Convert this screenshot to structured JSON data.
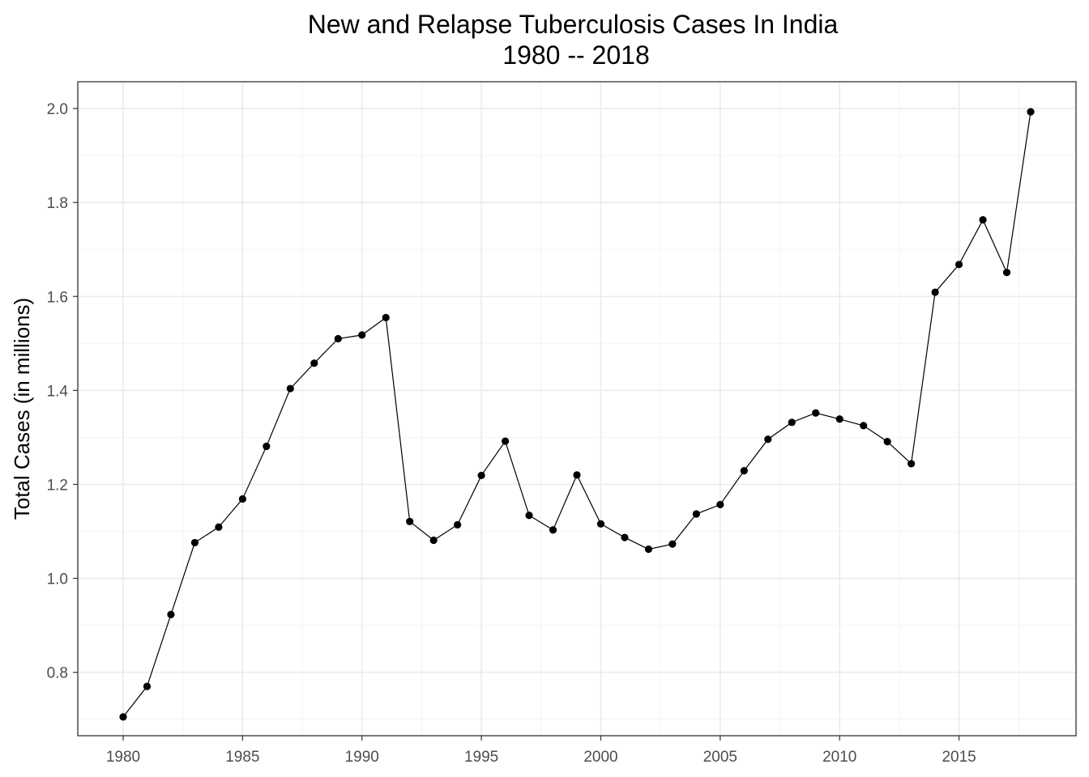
{
  "chart_data": {
    "type": "line",
    "title": "New and Relapse Tuberculosis Cases In India",
    "subtitle": "1980 -- 2018",
    "xlabel": "",
    "ylabel": "Total Cases (in millions)",
    "xlim": [
      1978.1,
      2019.9
    ],
    "ylim": [
      0.665,
      2.057
    ],
    "x_ticks": [
      1980,
      1985,
      1990,
      1995,
      2000,
      2005,
      2010,
      2015
    ],
    "y_ticks": [
      0.8,
      1.0,
      1.2,
      1.4,
      1.6,
      1.8,
      2.0
    ],
    "x_tick_labels": [
      "1980",
      "1985",
      "1990",
      "1995",
      "2000",
      "2005",
      "2010",
      "2015"
    ],
    "y_tick_labels": [
      "0.8",
      "1.0",
      "1.2",
      "1.4",
      "1.6",
      "1.8",
      "2.0"
    ],
    "grid": true,
    "legend": "none",
    "colors": {
      "line": "#000000",
      "point": "#000000",
      "grid_major": "#ebebeb",
      "grid_minor": "#f3f3f3",
      "panel_border": "#333333",
      "tick_label": "#4d4d4d"
    },
    "x": [
      1980,
      1981,
      1982,
      1983,
      1984,
      1985,
      1986,
      1987,
      1988,
      1989,
      1990,
      1991,
      1992,
      1993,
      1994,
      1995,
      1996,
      1997,
      1998,
      1999,
      2000,
      2001,
      2002,
      2003,
      2004,
      2005,
      2006,
      2007,
      2008,
      2009,
      2010,
      2011,
      2012,
      2013,
      2014,
      2015,
      2016,
      2017,
      2018
    ],
    "y": [
      0.705,
      0.77,
      0.923,
      1.076,
      1.109,
      1.169,
      1.281,
      1.404,
      1.458,
      1.51,
      1.518,
      1.555,
      1.121,
      1.081,
      1.114,
      1.219,
      1.292,
      1.134,
      1.103,
      1.22,
      1.116,
      1.087,
      1.062,
      1.073,
      1.137,
      1.157,
      1.229,
      1.296,
      1.332,
      1.352,
      1.339,
      1.325,
      1.291,
      1.244,
      1.609,
      1.668,
      1.763,
      1.651,
      1.993
    ]
  }
}
